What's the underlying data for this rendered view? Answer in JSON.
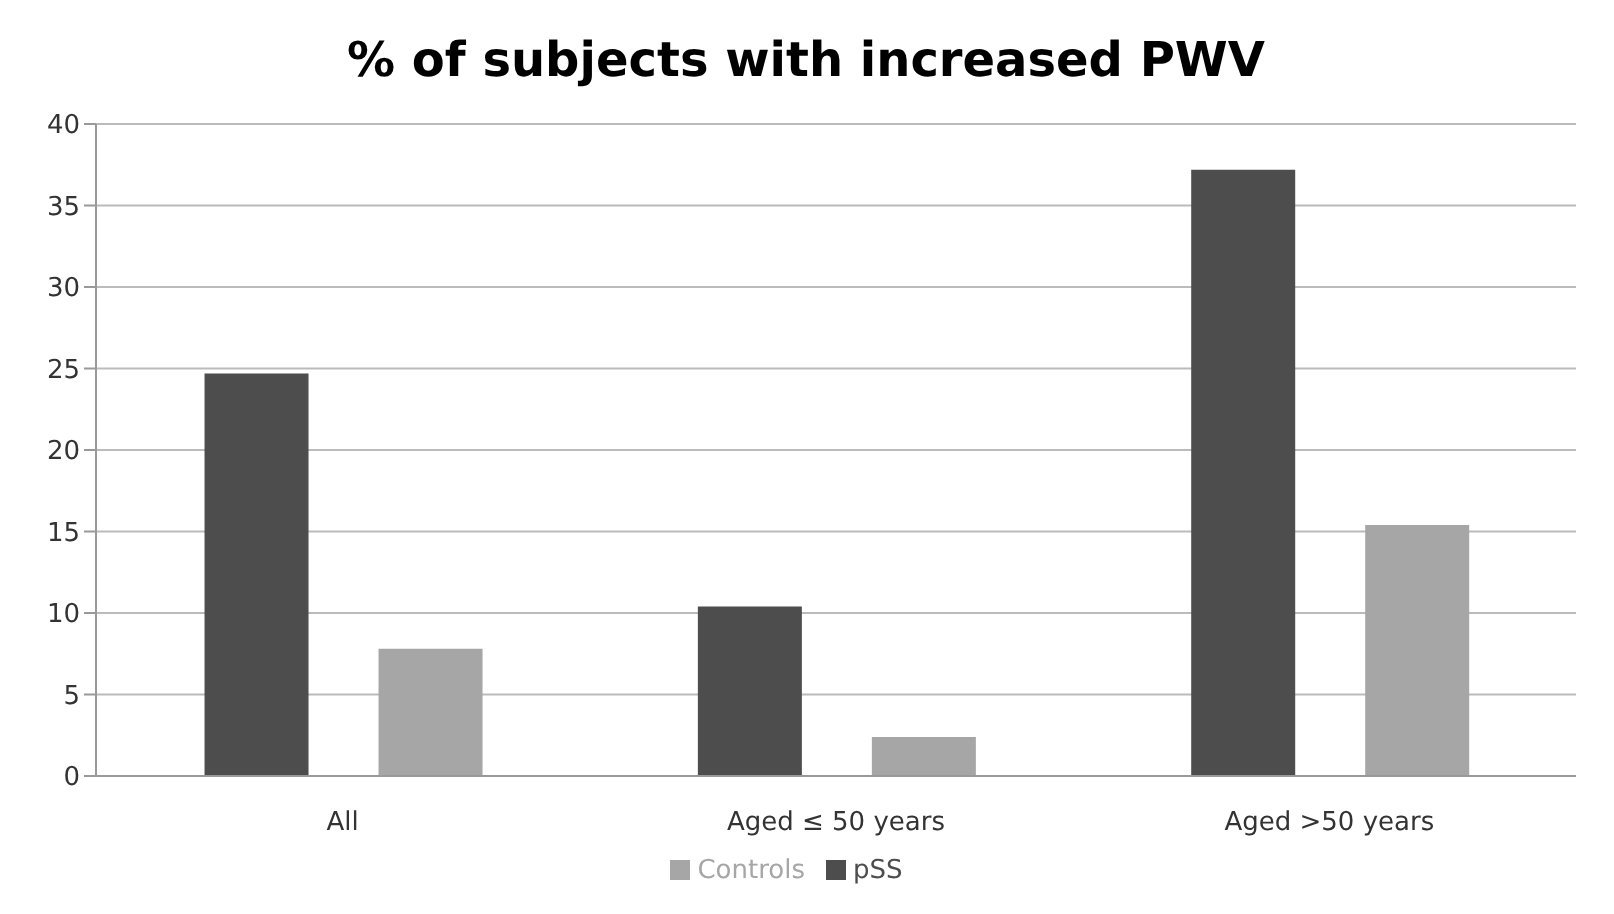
{
  "chart_data": {
    "type": "bar",
    "title": "% of subjects with increased PWV",
    "categories": [
      "All",
      "Aged ≤ 50 years",
      "Aged >50 years"
    ],
    "series": [
      {
        "name": "pSS",
        "color": "#4d4d4d",
        "values": [
          24.7,
          10.4,
          37.2
        ]
      },
      {
        "name": "Controls",
        "color": "#a6a6a6",
        "values": [
          7.8,
          2.4,
          15.4
        ]
      }
    ],
    "ylim": [
      0,
      40
    ],
    "yticks": [
      0,
      5,
      10,
      15,
      20,
      25,
      30,
      35,
      40
    ],
    "grid": "y",
    "legend": "bottom"
  }
}
